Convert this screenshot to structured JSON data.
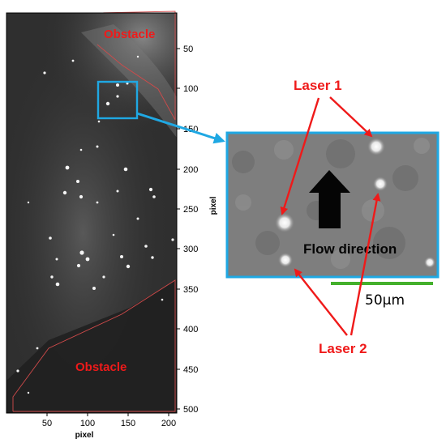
{
  "image_panel": {
    "x_axis_title": "pixel",
    "y_axis_title": "pixel",
    "x_ticks": [
      "50",
      "100",
      "150",
      "200"
    ],
    "y_ticks": [
      "50",
      "100",
      "150",
      "200",
      "250",
      "300",
      "350",
      "400",
      "450",
      "500"
    ],
    "obstacle_top_label": "Obstacle",
    "obstacle_bottom_label": "Obstacle"
  },
  "zoom_panel": {
    "y_axis_title": "pixel",
    "flow_label": "Flow direction",
    "scale_bar_label": "50μm"
  },
  "annotations": {
    "laser1_label": "Laser 1",
    "laser2_label": "Laser 2"
  },
  "colors": {
    "annotation_red": "#ef1a1a",
    "zoom_box_blue": "#1fa8e3",
    "scale_bar_green": "#44b02c",
    "obstacle_outline": "#d04a4a"
  }
}
